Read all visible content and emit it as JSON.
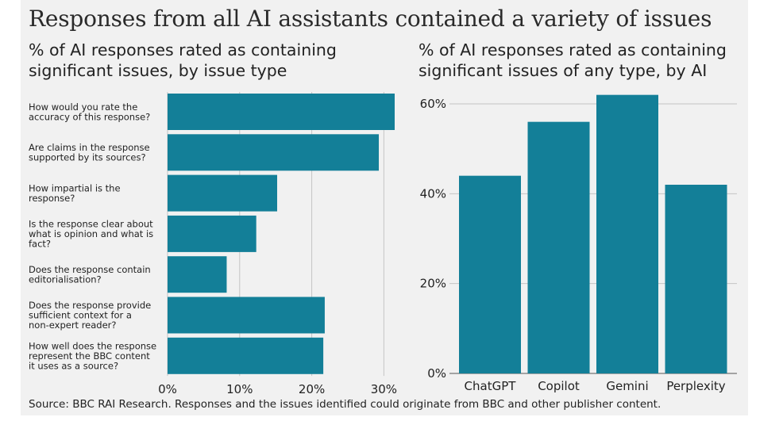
{
  "title": "Responses from all AI assistants contained a variety of issues",
  "source": "Source: BBC RAI Research. Responses and the issues identified could originate from BBC and other publisher content.",
  "colors": {
    "bar": "#137f98",
    "panel": "#f1f1f1",
    "grid": "#c4c4c4",
    "axis": "#555555",
    "text": "#222222"
  },
  "chart_data": [
    {
      "type": "bar",
      "orientation": "horizontal",
      "title": "% of AI responses rated as containing significant issues, by issue type",
      "categories": [
        "How would you rate the accuracy of this response?",
        "Are claims in the response supported by its sources?",
        "How impartial is the response?",
        "Is the response clear about what is opinion and what is fact?",
        "Does the response contain editorialisation?",
        "Does the response provide sufficient context for a non-expert reader?",
        "How well does the response represent the BBC content it uses as a source?"
      ],
      "category_lines": [
        [
          "How would you rate the",
          "accuracy of this response?"
        ],
        [
          "Are claims in the response",
          "supported by its sources?"
        ],
        [
          "How impartial is the",
          "response?"
        ],
        [
          "Is the response clear about",
          "what is opinion and what is",
          "fact?"
        ],
        [
          "Does the response contain",
          "editorialisation?"
        ],
        [
          "Does the response provide",
          "sufficient context for a",
          "non-expert reader?"
        ],
        [
          "How well does the response",
          "represent the BBC content",
          "it uses as a source?"
        ]
      ],
      "values": [
        31.5,
        29.3,
        15.2,
        12.3,
        8.2,
        21.8,
        21.6
      ],
      "xlim": [
        0,
        31.5
      ],
      "xticks": [
        0,
        10,
        20,
        30
      ],
      "xtick_labels": [
        "0%",
        "10%",
        "20%",
        "30%"
      ],
      "grid": true
    },
    {
      "type": "bar",
      "orientation": "vertical",
      "title": "% of AI responses rated as containing significant issues of any type, by AI",
      "categories": [
        "ChatGPT",
        "Copilot",
        "Gemini",
        "Perplexity"
      ],
      "values": [
        44,
        56,
        62,
        42
      ],
      "ylim": [
        0,
        60
      ],
      "yticks": [
        0,
        20,
        40,
        60
      ],
      "ytick_labels": [
        "0%",
        "20%",
        "40%",
        "60%"
      ],
      "grid": true
    }
  ]
}
